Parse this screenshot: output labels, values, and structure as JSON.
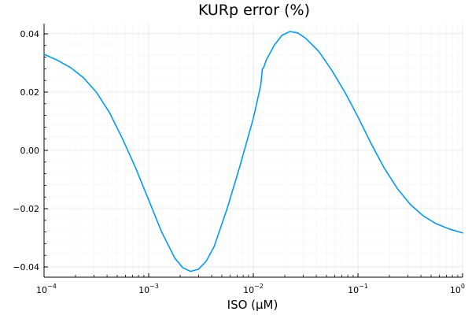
{
  "chart_data": {
    "type": "line",
    "title": "KURp error (%)",
    "xlabel": "ISO (μM)",
    "ylabel": "",
    "x_scale": "log",
    "xlim": [
      0.0001,
      1
    ],
    "ylim": [
      -0.0435,
      0.0435
    ],
    "x_ticks": [
      {
        "value": 0.0001,
        "base": "10",
        "exp": "−4"
      },
      {
        "value": 0.001,
        "base": "10",
        "exp": "−3"
      },
      {
        "value": 0.01,
        "base": "10",
        "exp": "−2"
      },
      {
        "value": 0.1,
        "base": "10",
        "exp": "−1"
      },
      {
        "value": 1,
        "base": "10",
        "exp": "0"
      }
    ],
    "y_ticks": [
      {
        "value": -0.04,
        "label": "−0.04"
      },
      {
        "value": -0.02,
        "label": "−0.02"
      },
      {
        "value": 0.0,
        "label": "0.00"
      },
      {
        "value": 0.02,
        "label": "0.02"
      },
      {
        "value": 0.04,
        "label": "0.04"
      }
    ],
    "grid": true,
    "series": [
      {
        "color": "#009af9",
        "points": [
          [
            0.0001,
            0.033
          ],
          [
            0.000133,
            0.031
          ],
          [
            0.000178,
            0.0285
          ],
          [
            0.000237,
            0.025
          ],
          [
            0.000316,
            0.02
          ],
          [
            0.000422,
            0.013
          ],
          [
            0.000562,
            0.004
          ],
          [
            0.00075,
            -0.006
          ],
          [
            0.001,
            -0.017
          ],
          [
            0.00133,
            -0.028
          ],
          [
            0.00178,
            -0.037
          ],
          [
            0.00211,
            -0.0402
          ],
          [
            0.00251,
            -0.0415
          ],
          [
            0.00298,
            -0.0408
          ],
          [
            0.00355,
            -0.038
          ],
          [
            0.00422,
            -0.033
          ],
          [
            0.00562,
            -0.02
          ],
          [
            0.0075,
            -0.005
          ],
          [
            0.01,
            0.011
          ],
          [
            0.0118,
            0.0225
          ],
          [
            0.0122,
            0.028
          ],
          [
            0.0125,
            0.0282
          ],
          [
            0.0133,
            0.031
          ],
          [
            0.0158,
            0.036
          ],
          [
            0.0188,
            0.0395
          ],
          [
            0.0224,
            0.0408
          ],
          [
            0.0266,
            0.0403
          ],
          [
            0.0316,
            0.0385
          ],
          [
            0.0422,
            0.034
          ],
          [
            0.0562,
            0.0275
          ],
          [
            0.075,
            0.02
          ],
          [
            0.1,
            0.0115
          ],
          [
            0.133,
            0.0025
          ],
          [
            0.178,
            -0.006
          ],
          [
            0.237,
            -0.013
          ],
          [
            0.316,
            -0.0185
          ],
          [
            0.422,
            -0.0225
          ],
          [
            0.562,
            -0.0252
          ],
          [
            0.75,
            -0.027
          ],
          [
            1.0,
            -0.0283
          ]
        ]
      }
    ]
  }
}
